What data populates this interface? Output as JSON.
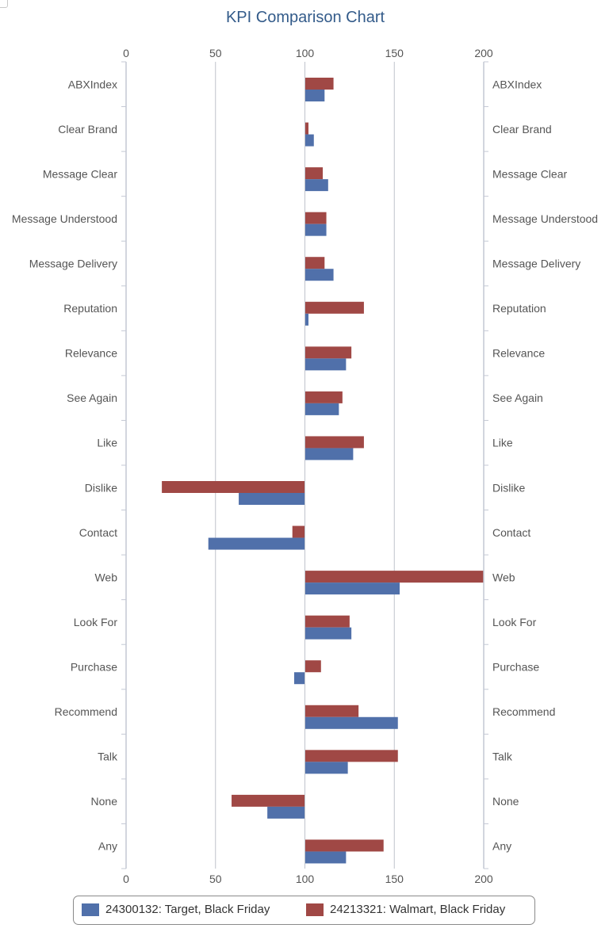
{
  "chart_data": {
    "type": "bar",
    "orientation": "horizontal",
    "title": "KPI Comparison Chart",
    "categories": [
      "ABXIndex",
      "Clear Brand",
      "Message Clear",
      "Message Understood",
      "Message Delivery",
      "Reputation",
      "Relevance",
      "See Again",
      "Like",
      "Dislike",
      "Contact",
      "Web",
      "Look For",
      "Purchase",
      "Recommend",
      "Talk",
      "None",
      "Any"
    ],
    "baseline": 100,
    "xlim": [
      0,
      200
    ],
    "xticks": [
      0,
      50,
      100,
      150,
      200
    ],
    "grid": true,
    "legend_position": "bottom",
    "series": [
      {
        "name": "24213321: Walmart, Black Friday",
        "color": "#a04845",
        "values": [
          116,
          102,
          110,
          112,
          111,
          133,
          126,
          121,
          133,
          20,
          93,
          200,
          125,
          109,
          130,
          152,
          59,
          144
        ]
      },
      {
        "name": "24300132: Target, Black Friday",
        "color": "#5070aa",
        "values": [
          111,
          105,
          113,
          112,
          116,
          102,
          123,
          119,
          127,
          63,
          46,
          153,
          126,
          94,
          152,
          124,
          79,
          123
        ]
      }
    ]
  },
  "legend": {
    "items": [
      {
        "label": "24300132: Target, Black Friday",
        "color": "#5070aa"
      },
      {
        "label": "24213321: Walmart, Black Friday",
        "color": "#a04845"
      }
    ]
  }
}
